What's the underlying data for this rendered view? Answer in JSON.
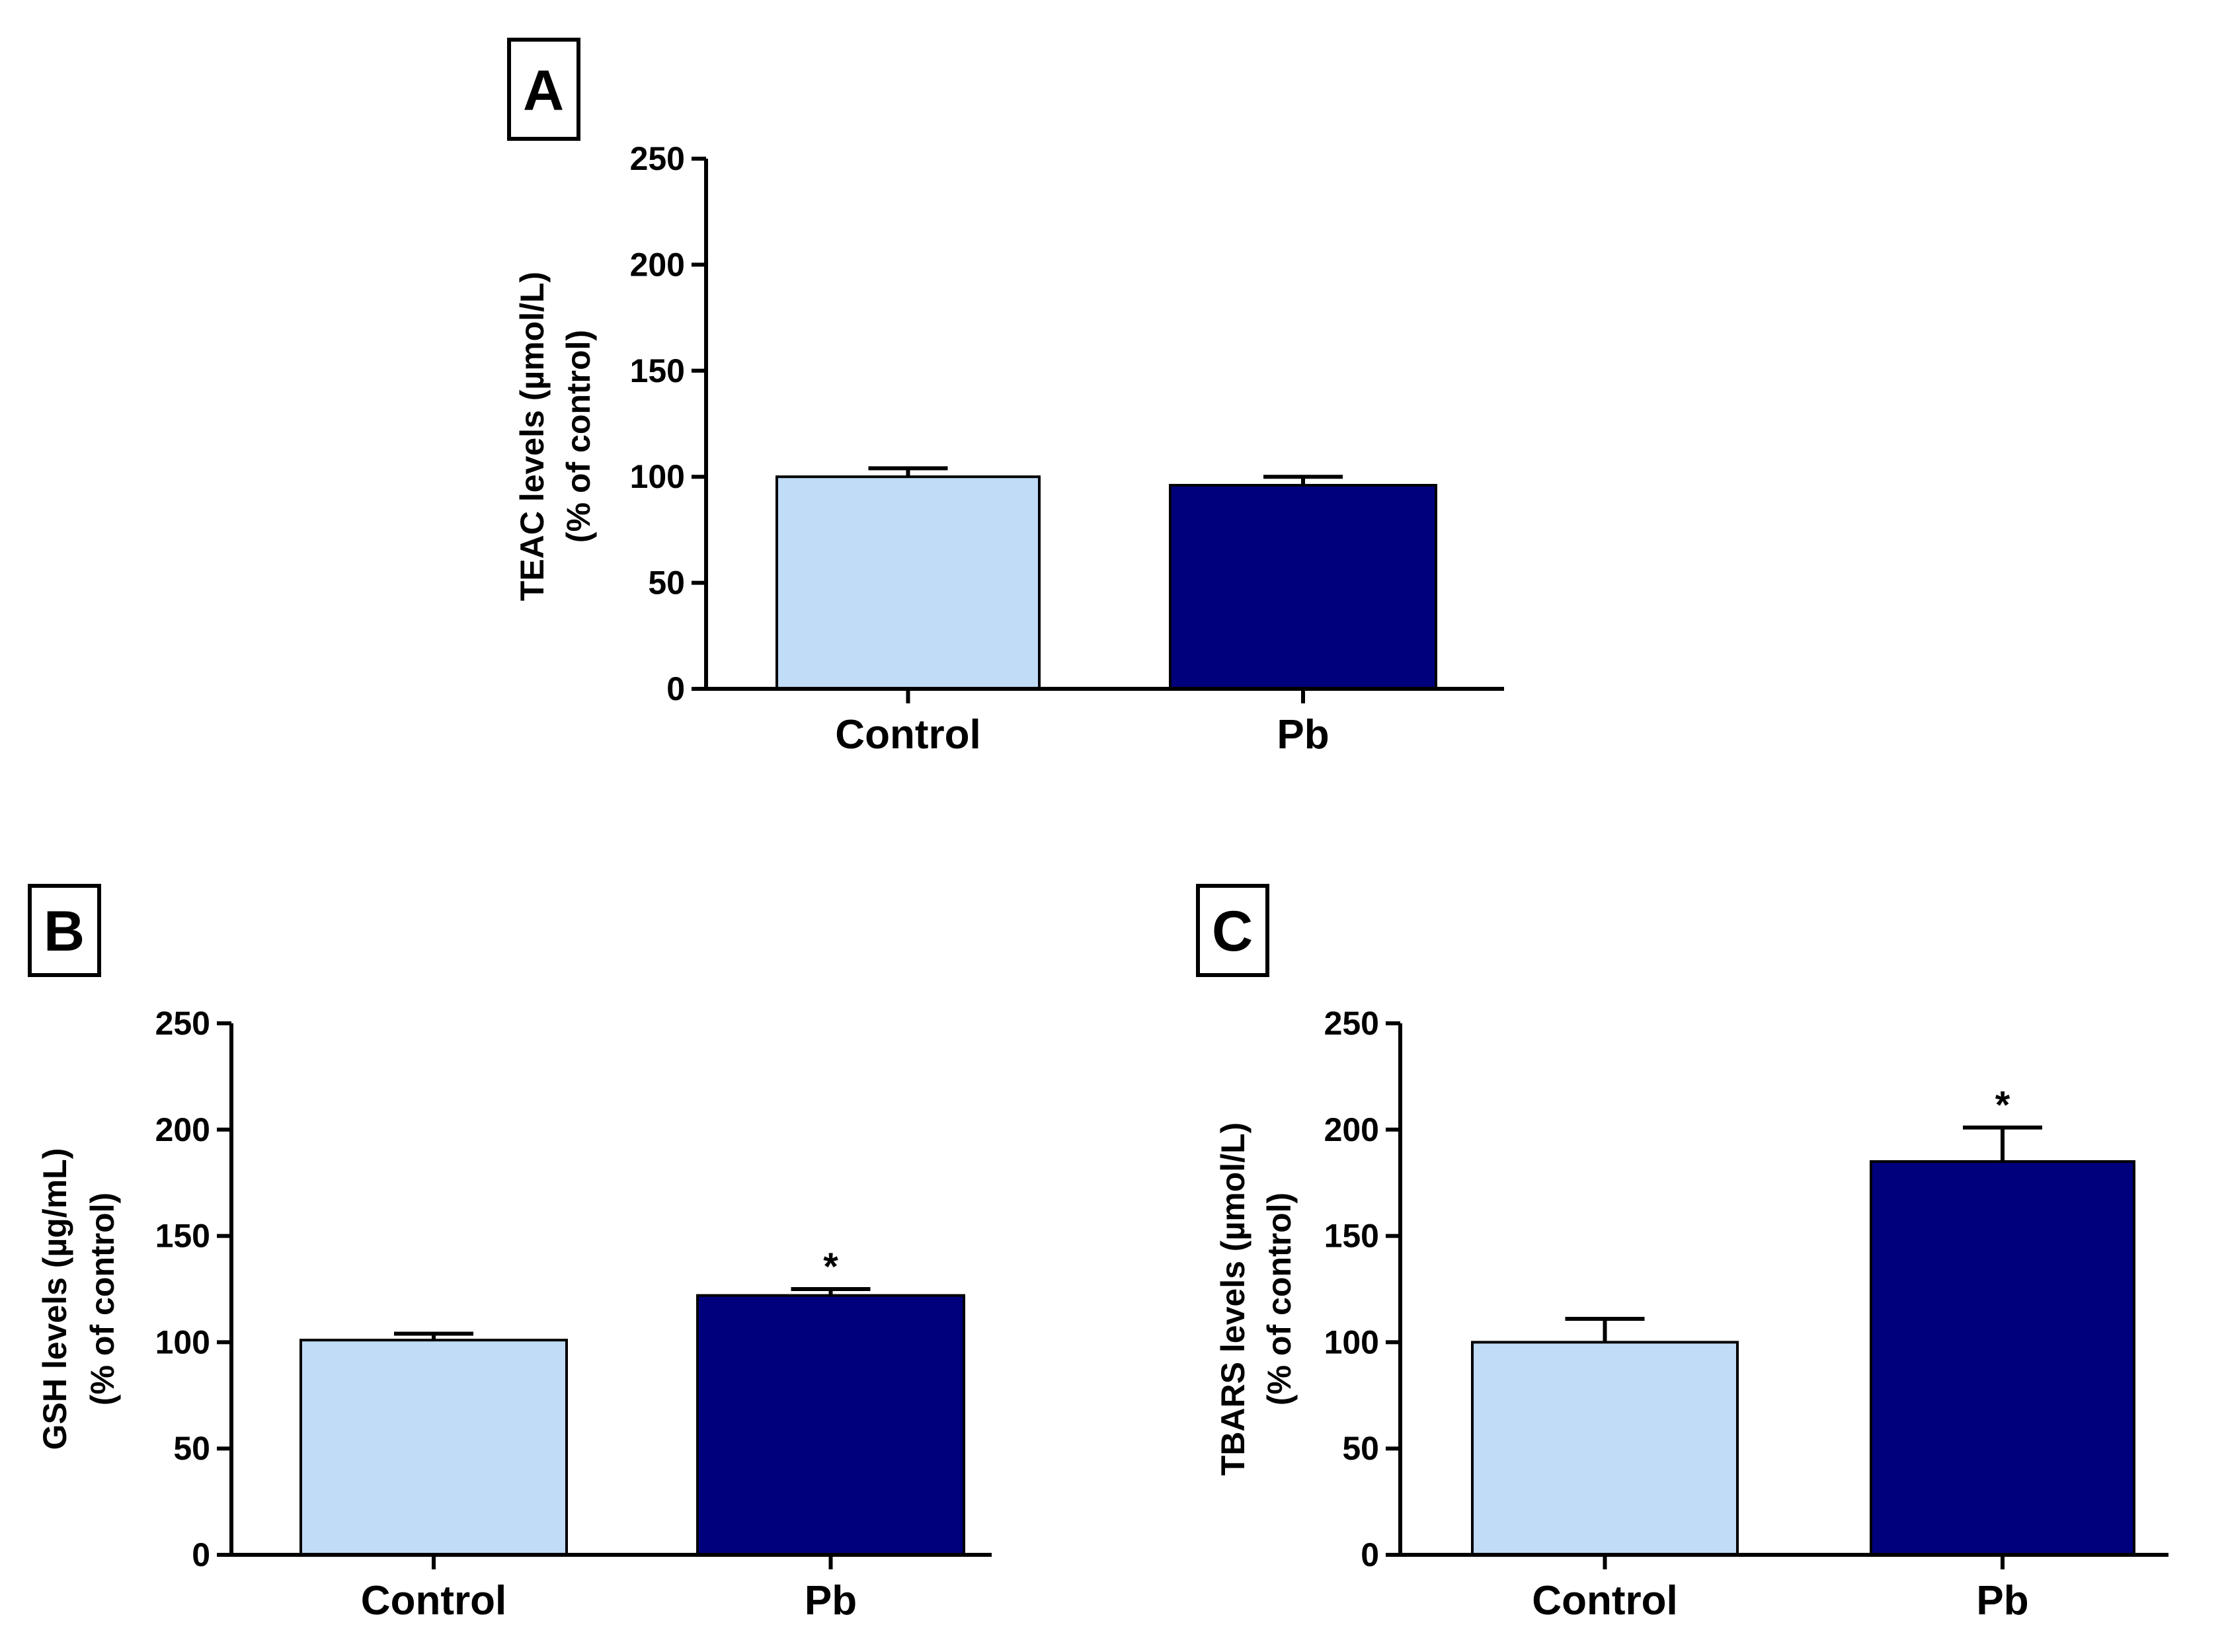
{
  "colors": {
    "control": "#c0dcf7",
    "pb": "#00007d",
    "axis": "#000000"
  },
  "chart_data": [
    {
      "type": "bar",
      "panel": "A",
      "categories": [
        "Control",
        "Pb"
      ],
      "values": [
        100,
        96
      ],
      "errors": [
        4,
        4
      ],
      "significance": [
        "",
        ""
      ],
      "ylabel_line1": "TEAC levels (µmol/L)",
      "ylabel_line2": "(% of control)",
      "ylim": [
        0,
        250
      ],
      "yticks": [
        "0",
        "50",
        "100",
        "150",
        "200",
        "250"
      ],
      "grid": false
    },
    {
      "type": "bar",
      "panel": "B",
      "categories": [
        "Control",
        "Pb"
      ],
      "values": [
        101,
        122
      ],
      "errors": [
        3,
        3
      ],
      "significance": [
        "",
        "*"
      ],
      "ylabel_line1": "GSH levels (µg/mL)",
      "ylabel_line2": "(% of control)",
      "ylim": [
        0,
        250
      ],
      "yticks": [
        "0",
        "50",
        "100",
        "150",
        "200",
        "250"
      ],
      "grid": false
    },
    {
      "type": "bar",
      "panel": "C",
      "categories": [
        "Control",
        "Pb"
      ],
      "values": [
        100,
        185
      ],
      "errors": [
        11,
        16
      ],
      "significance": [
        "",
        "*"
      ],
      "ylabel_line1": "TBARS levels (µmol/L)",
      "ylabel_line2": "(% of control)",
      "ylim": [
        0,
        250
      ],
      "yticks": [
        "0",
        "50",
        "100",
        "150",
        "200",
        "250"
      ],
      "grid": false
    }
  ]
}
